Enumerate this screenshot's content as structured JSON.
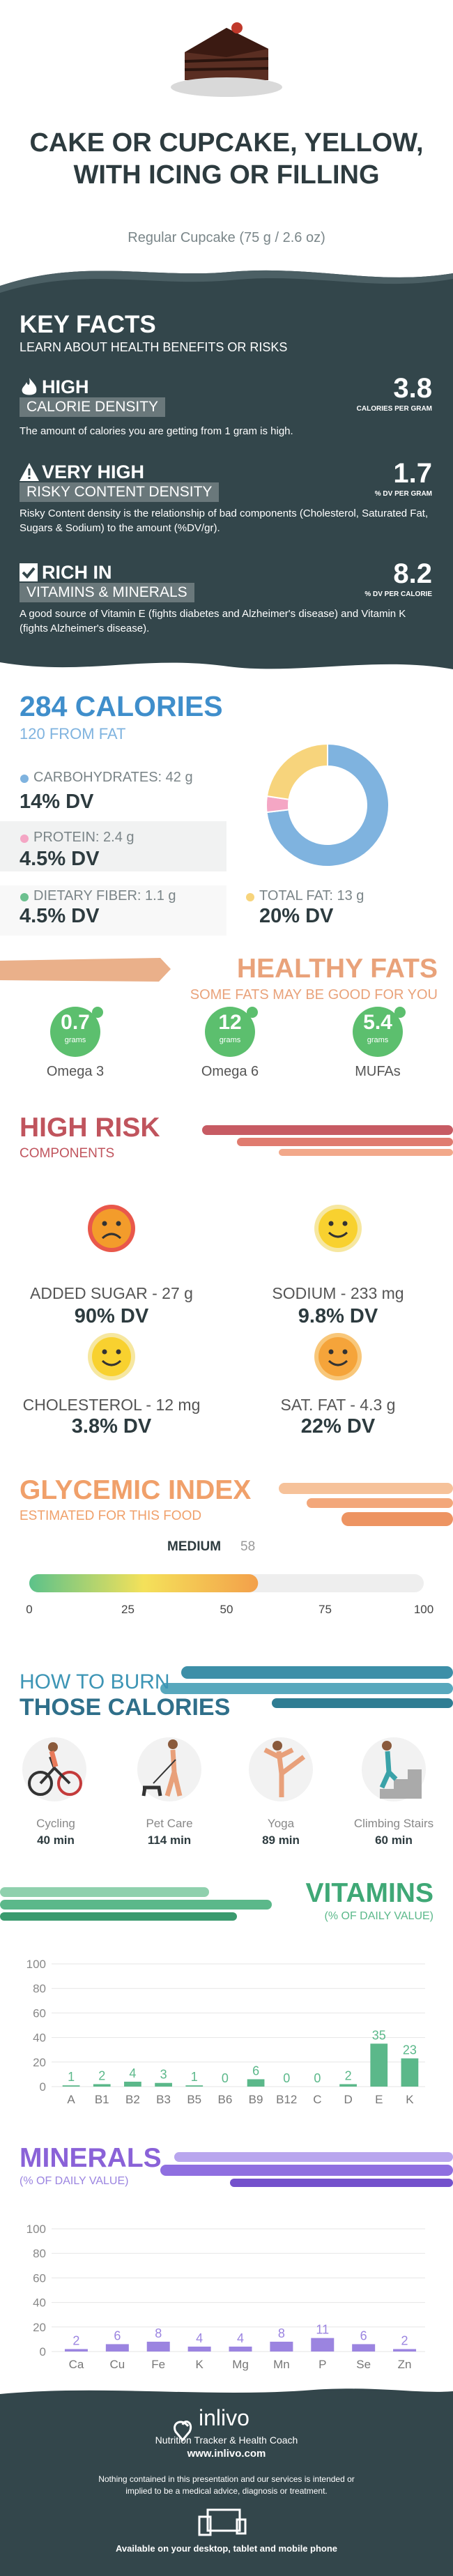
{
  "header": {
    "title": "CAKE OR CUPCAKE, YELLOW, WITH ICING OR FILLING",
    "subtitle": "Regular Cupcake (75 g / 2.6 oz)"
  },
  "key_facts": {
    "title": "KEY FACTS",
    "subtitle": "LEARN ABOUT HEALTH BENEFITS OR RISKS",
    "items": [
      {
        "level": "HIGH",
        "label": "CALORIE DENSITY",
        "value": 3.8,
        "unit": "CALORIES PER GRAM",
        "text": "The amount of calories you are getting from 1 gram is high."
      },
      {
        "level": "VERY HIGH",
        "label": "RISKY CONTENT DENSITY",
        "value": 1.7,
        "unit": "% DV PER GRAM",
        "text": "Risky Content density is the relationship of bad components (Cholesterol, Saturated Fat, Sugars & Sodium) to the amount (%DV/gr)."
      },
      {
        "level": "RICH  IN",
        "label": "VITAMINS & MINERALS",
        "value": 8.2,
        "unit": "% DV PER CALORIE",
        "text": "A good source of Vitamin E (fights diabetes and Alzheimer's disease) and Vitamin K (fights Alzheimer's disease)."
      }
    ]
  },
  "calories": {
    "title": "284 CALORIES",
    "subtitle": "120 FROM FAT",
    "nutrients": [
      {
        "label": "CARBOHYDRATES: 42 g",
        "dv": "14% DV"
      },
      {
        "label": "PROTEIN: 2.4 g",
        "dv": "4.5% DV"
      },
      {
        "label": "DIETARY FIBER: 1.1 g",
        "dv": "4.5% DV"
      },
      {
        "label": "TOTAL FAT: 13 g",
        "dv": "20% DV"
      }
    ]
  },
  "healthy_fats": {
    "title": "HEALTHY FATS",
    "subtitle": "SOME FATS MAY BE GOOD FOR YOU",
    "unit": "grams",
    "items": [
      {
        "value": 0.7,
        "name": "Omega 3"
      },
      {
        "value": 12,
        "name": "Omega 6"
      },
      {
        "value": 5.4,
        "name": "MUFAs"
      }
    ]
  },
  "high_risk": {
    "title": "HIGH RISK",
    "subtitle": "COMPONENTS",
    "items": [
      {
        "label": "ADDED SUGAR - 27 g",
        "dv": "90% DV"
      },
      {
        "label": "SODIUM - 233 mg",
        "dv": "9.8% DV"
      },
      {
        "label": "CHOLESTEROL - 12 mg",
        "dv": "3.8% DV"
      },
      {
        "label": "SAT. FAT - 4.3 g",
        "dv": "22% DV"
      }
    ]
  },
  "glycemic": {
    "title": "GLYCEMIC INDEX",
    "subtitle": "ESTIMATED FOR THIS FOOD",
    "level": "MEDIUM",
    "value": 58,
    "xlim": [
      0,
      100
    ],
    "xticks": [
      0,
      25,
      50,
      75,
      100
    ]
  },
  "burn": {
    "title_1": "HOW TO BURN",
    "title_2": "THOSE CALORIES",
    "activities": [
      {
        "name": "Cycling",
        "time": "40 min"
      },
      {
        "name": "Pet Care",
        "time": "114 min"
      },
      {
        "name": "Yoga",
        "time": "89 min"
      },
      {
        "name": "Climbing Stairs",
        "time": "60 min"
      }
    ]
  },
  "vitamins": {
    "title": "VITAMINS",
    "subtitle": "(% OF DAILY VALUE)"
  },
  "minerals": {
    "title": "MINERALS",
    "subtitle": "(% OF DAILY VALUE)"
  },
  "chart_data": [
    {
      "type": "donut",
      "values": [
        42,
        2.4,
        13
      ],
      "colors": [
        "#7fb3df",
        "#f4a6c4",
        "#f7d47c"
      ]
    },
    {
      "type": "bar",
      "categories": [
        "A",
        "B1",
        "B2",
        "B3",
        "B5",
        "B6",
        "B9",
        "B12",
        "C",
        "D",
        "E",
        "K"
      ],
      "values": [
        1,
        2,
        4,
        3,
        1,
        0,
        6,
        0,
        0,
        2,
        35,
        23
      ],
      "color": "#5bb88a",
      "ylim": [
        0,
        100
      ],
      "yticks": [
        0,
        20,
        40,
        60,
        80,
        100
      ],
      "grid": true
    },
    {
      "type": "bar",
      "categories": [
        "Ca",
        "Cu",
        "Fe",
        "K",
        "Mg",
        "Mn",
        "P",
        "Se",
        "Zn"
      ],
      "values": [
        2,
        6,
        8,
        4,
        4,
        8,
        11,
        6,
        2
      ],
      "color": "#9b84e0",
      "ylim": [
        0,
        100
      ],
      "yticks": [
        0,
        20,
        40,
        60,
        80,
        100
      ],
      "grid": true
    }
  ],
  "footer": {
    "brand": "inlivo",
    "tagline": "Nutrition Tracker & Health Coach",
    "url": "www.inlivo.com",
    "disclaimer": "Nothing contained in this presentation and our services is intended or implied to be a medical advice, diagnosis or treatment.",
    "available": "Available on your desktop, tablet and mobile phone"
  }
}
